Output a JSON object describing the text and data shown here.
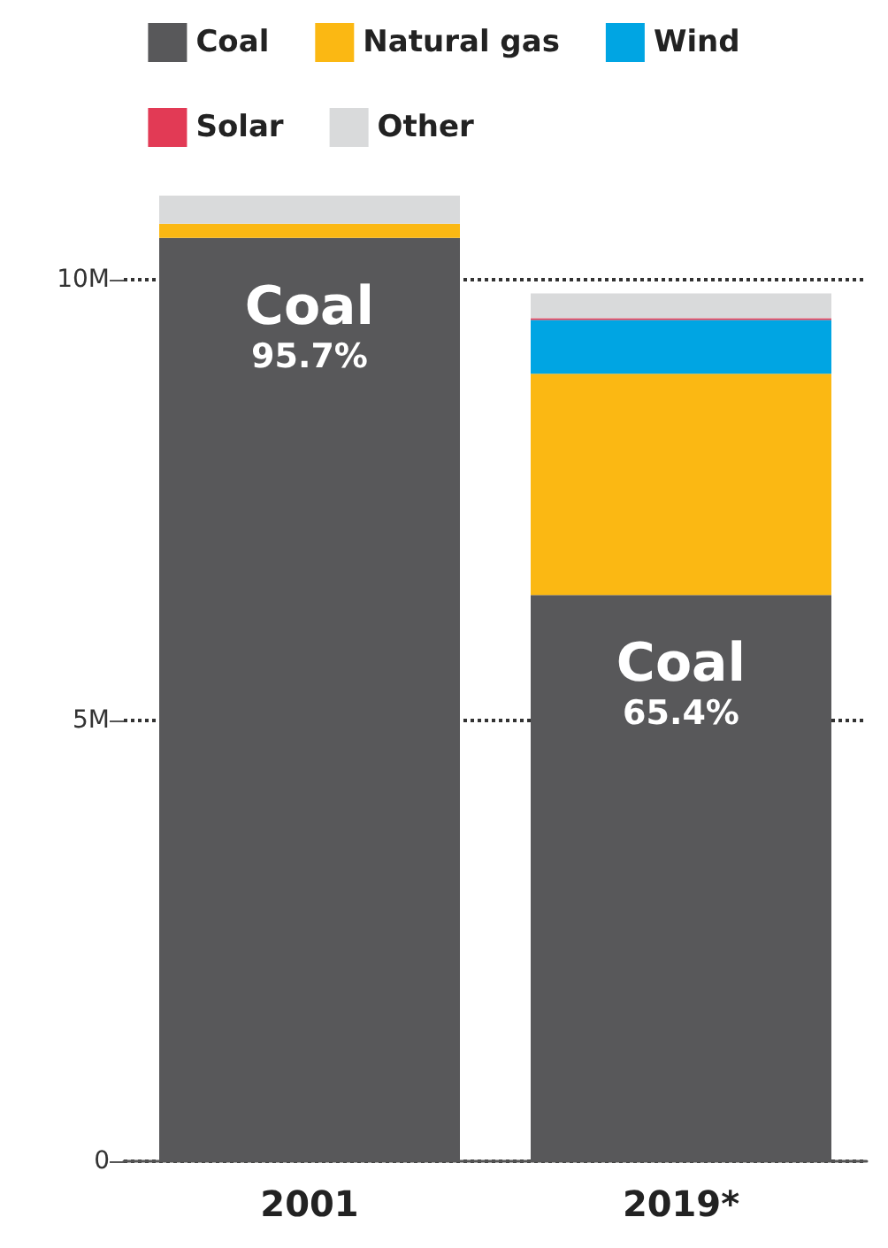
{
  "chart_data": {
    "type": "bar",
    "stacked": true,
    "categories": [
      "2001",
      "2019*"
    ],
    "series": [
      {
        "name": "Coal",
        "color": "#58585a",
        "values": [
          10.47,
          6.42
        ],
        "value_labels": [
          "Coal\n95.7%",
          "Coal\n65.4%"
        ]
      },
      {
        "name": "Natural gas",
        "color": "#fbb813",
        "values": [
          0.16,
          2.51
        ]
      },
      {
        "name": "Wind",
        "color": "#00a5e3",
        "values": [
          0,
          0.61
        ]
      },
      {
        "name": "Solar",
        "color": "#e23a55",
        "values": [
          0,
          0.02
        ]
      },
      {
        "name": "Other",
        "color": "#d9dadb",
        "values": [
          0.32,
          0.28
        ]
      }
    ],
    "ylim": [
      0,
      11
    ],
    "yticks": [
      0,
      {
        "value": 5,
        "label": "5M"
      },
      {
        "value": 10,
        "label": "10M"
      }
    ],
    "grid": "y",
    "line_style": "dotted",
    "legend": "top"
  }
}
